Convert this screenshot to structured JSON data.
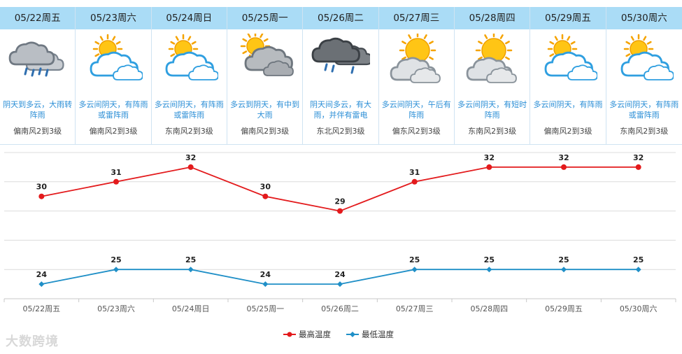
{
  "days": [
    {
      "date": "05/22周五",
      "desc": "阴天到多云，大雨转阵雨",
      "wind": "偏南风2到3级",
      "icon": "cloud-rain-icon"
    },
    {
      "date": "05/23周六",
      "desc": "多云间阴天，有阵雨或雷阵雨",
      "wind": "偏南风2到3级",
      "icon": "partly-cloudy-icon"
    },
    {
      "date": "05/24周日",
      "desc": "多云间阴天，有阵雨或雷阵雨",
      "wind": "东南风2到3级",
      "icon": "partly-cloudy-icon"
    },
    {
      "date": "05/25周一",
      "desc": "多云到阴天，有中到大雨",
      "wind": "偏南风2到3级",
      "icon": "cloudy-sun-icon"
    },
    {
      "date": "05/26周二",
      "desc": "阴天间多云，有大雨，并伴有雷电",
      "wind": "东北风2到3级",
      "icon": "thunderstorm-icon"
    },
    {
      "date": "05/27周三",
      "desc": "多云间阴天，午后有阵雨",
      "wind": "偏东风2到3级",
      "icon": "sun-cloud-icon"
    },
    {
      "date": "05/28周四",
      "desc": "多云间阴天，有短时阵雨",
      "wind": "东南风2到3级",
      "icon": "sun-cloud-icon"
    },
    {
      "date": "05/29周五",
      "desc": "多云间阴天，有阵雨",
      "wind": "偏南风2到3级",
      "icon": "partly-cloudy-icon"
    },
    {
      "date": "05/30周六",
      "desc": "多云间阴天，有阵雨或雷阵雨",
      "wind": "东南风2到3级",
      "icon": "partly-cloudy-icon"
    }
  ],
  "chart_data": {
    "type": "line",
    "categories": [
      "05/22周五",
      "05/23周六",
      "05/24周日",
      "05/25周一",
      "05/26周二",
      "05/27周三",
      "05/28周四",
      "05/29周五",
      "05/30周六"
    ],
    "series": [
      {
        "name": "最高温度",
        "values": [
          30,
          31,
          32,
          30,
          29,
          31,
          32,
          32,
          32
        ],
        "color": "#e31a1c",
        "marker": "circle"
      },
      {
        "name": "最低温度",
        "values": [
          24,
          25,
          25,
          24,
          24,
          25,
          25,
          25,
          25
        ],
        "color": "#1f8fc7",
        "marker": "diamond"
      }
    ],
    "ylim": [
      23,
      33
    ],
    "grid": true,
    "legend": "bottom-center"
  },
  "watermark": "大数跨境"
}
